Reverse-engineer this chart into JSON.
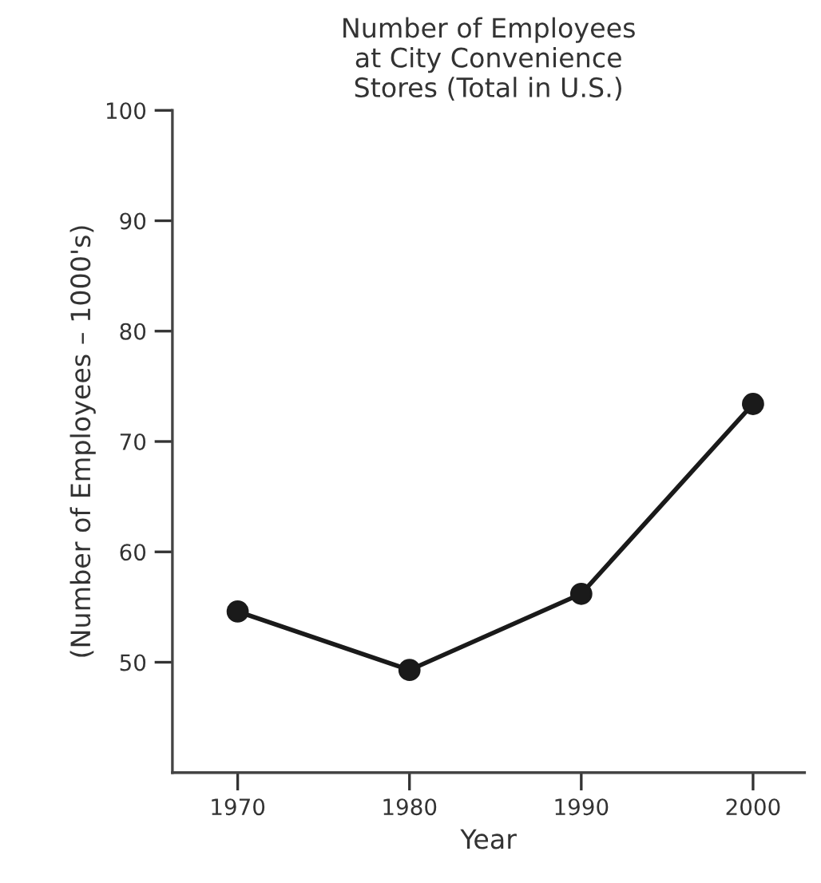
{
  "chart_data": {
    "type": "line",
    "title": "Number of Employees\nat City Convenience\nStores (Total in U.S.)",
    "xlabel": "Year",
    "ylabel": "(Number of Employees – 1000's)",
    "x": [
      1970,
      1980,
      1990,
      2000
    ],
    "series": [
      {
        "color": "#1a1a1a",
        "values": [
          54.6,
          49.3,
          56.2,
          73.4
        ]
      }
    ],
    "xlim": [
      1966.2,
      2003
    ],
    "xticks": [
      1970,
      1980,
      1990,
      2000
    ],
    "ylim": [
      40,
      100
    ],
    "yticks": [
      50,
      60,
      70,
      80,
      90,
      100
    ],
    "marker": "circle",
    "line_style": "solid",
    "grid": false,
    "legend": false
  }
}
